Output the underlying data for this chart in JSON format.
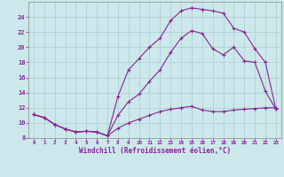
{
  "xlabel": "Windchill (Refroidissement éolien,°C)",
  "bg_color": "#cce8ea",
  "grid_color": "#aacccc",
  "line_color": "#882299",
  "xlim": [
    -0.5,
    23.5
  ],
  "ylim": [
    8,
    26
  ],
  "xticks": [
    0,
    1,
    2,
    3,
    4,
    5,
    6,
    7,
    8,
    9,
    10,
    11,
    12,
    13,
    14,
    15,
    16,
    17,
    18,
    19,
    20,
    21,
    22,
    23
  ],
  "yticks": [
    8,
    10,
    12,
    14,
    16,
    18,
    20,
    22,
    24
  ],
  "line1_x": [
    0,
    1,
    2,
    3,
    4,
    5,
    6,
    7,
    8,
    9,
    10,
    11,
    12,
    13,
    14,
    15,
    16,
    17,
    18,
    19,
    20,
    21,
    22,
    23
  ],
  "line1_y": [
    11.1,
    10.7,
    9.8,
    9.2,
    8.8,
    8.9,
    8.8,
    8.3,
    9.3,
    10.0,
    10.5,
    11.0,
    11.5,
    11.8,
    12.0,
    12.2,
    11.7,
    11.5,
    11.5,
    11.7,
    11.8,
    11.9,
    12.0,
    12.0
  ],
  "line2_x": [
    0,
    1,
    2,
    3,
    4,
    5,
    6,
    7,
    8,
    9,
    10,
    11,
    12,
    13,
    14,
    15,
    16,
    17,
    18,
    19,
    20,
    21,
    22,
    23
  ],
  "line2_y": [
    11.1,
    10.7,
    9.8,
    9.2,
    8.8,
    8.9,
    8.8,
    8.3,
    11.0,
    12.8,
    13.8,
    15.5,
    17.0,
    19.3,
    21.2,
    22.2,
    21.8,
    19.8,
    19.0,
    20.0,
    18.2,
    18.0,
    14.2,
    11.8
  ],
  "line3_x": [
    0,
    1,
    2,
    3,
    4,
    5,
    6,
    7,
    8,
    9,
    10,
    11,
    12,
    13,
    14,
    15,
    16,
    17,
    18,
    19,
    20,
    21,
    22,
    23
  ],
  "line3_y": [
    11.1,
    10.7,
    9.8,
    9.2,
    8.8,
    8.9,
    8.8,
    8.3,
    13.5,
    17.0,
    18.5,
    20.0,
    21.2,
    23.5,
    24.8,
    25.2,
    25.0,
    24.8,
    24.5,
    22.5,
    22.0,
    19.8,
    18.0,
    11.8
  ]
}
